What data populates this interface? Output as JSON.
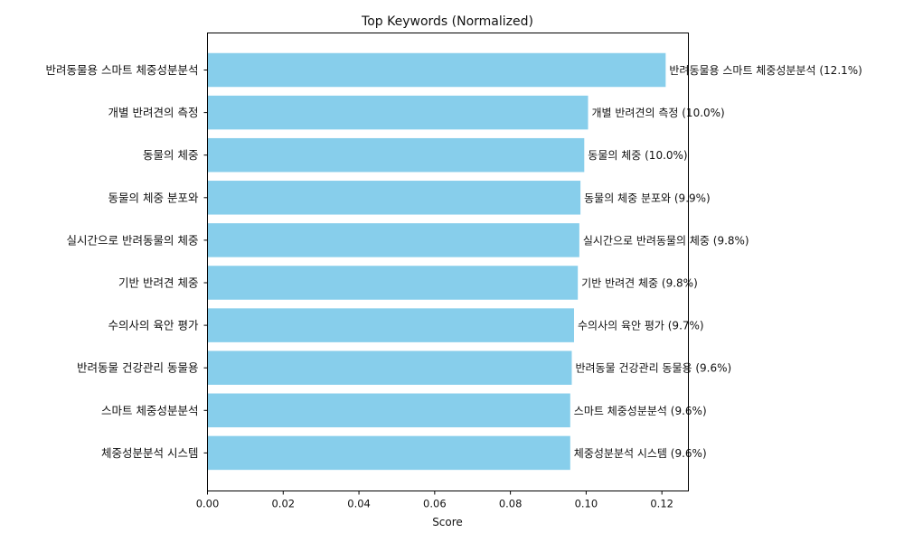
{
  "chart_data": {
    "type": "bar",
    "orientation": "horizontal",
    "title": "Top Keywords (Normalized)",
    "xlabel": "Score",
    "ylabel": "",
    "xlim": [
      0,
      0.127
    ],
    "xticks": [
      "0.00",
      "0.02",
      "0.04",
      "0.06",
      "0.08",
      "0.10",
      "0.12"
    ],
    "grid": false,
    "bar_color": "#87ceeb",
    "categories": [
      "반려동물용 스마트 체중성분분석",
      "개별 반려견의 측정",
      "동물의 체중",
      "동물의 체중 분포와",
      "실시간으로 반려동물의 체중",
      "기반 반려견 체중",
      "수의사의 육안 평가",
      "반려동물 건강관리 동물용",
      "스마트 체중성분분석",
      "체중성분분석 시스템"
    ],
    "values": [
      0.121,
      0.1005,
      0.0995,
      0.0985,
      0.0982,
      0.0978,
      0.0968,
      0.0962,
      0.0958,
      0.0958
    ],
    "data_labels": [
      "반려동물용 스마트 체중성분분석 (12.1%)",
      "개별 반려견의 측정 (10.0%)",
      "동물의 체중 (10.0%)",
      "동물의 체중 분포와 (9.9%)",
      "실시간으로 반려동물의 체중 (9.8%)",
      "기반 반려견 체중 (9.8%)",
      "수의사의 육안 평가 (9.7%)",
      "반려동물 건강관리 동물용 (9.6%)",
      "스마트 체중성분분석 (9.6%)",
      "체중성분분석 시스템 (9.6%)"
    ]
  }
}
